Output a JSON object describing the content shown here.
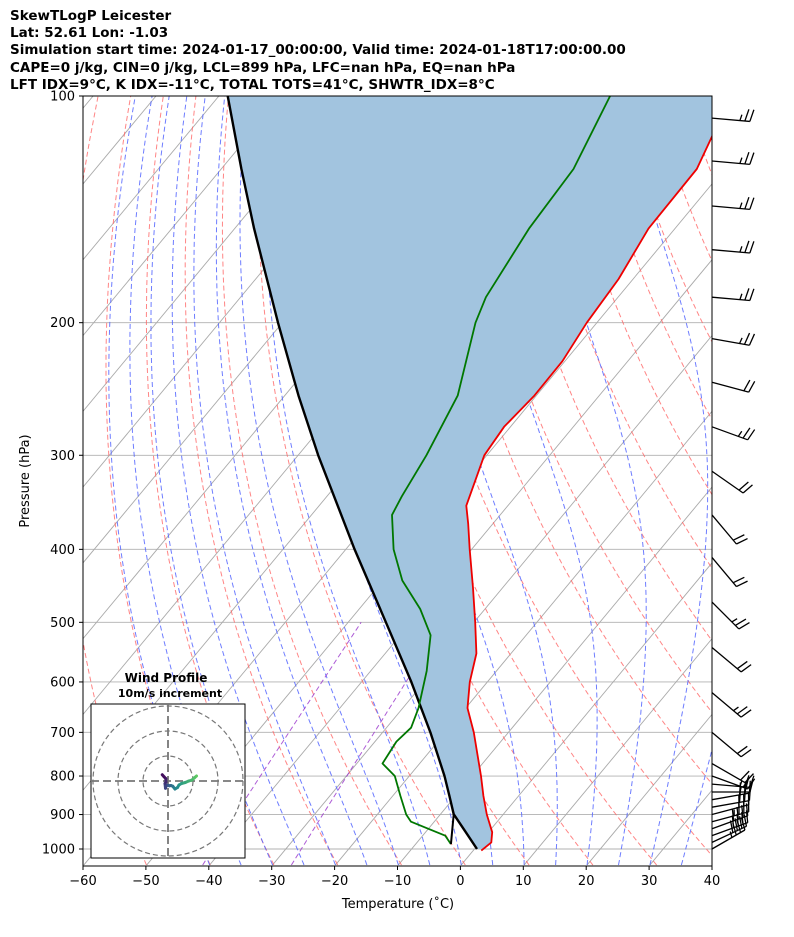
{
  "header": {
    "line1": "SkewTLogP Leicester",
    "line2": "Lat: 52.61   Lon: -1.03",
    "line3": "Simulation start time: 2024-01-17_00:00:00, Valid time: 2024-01-18T17:00:00.00",
    "line4": "CAPE=0 j/kg, CIN=0 j/kg, LCL=899 hPa, LFC=nan hPa, EQ=nan hPa",
    "line5": "LFT IDX=9°C, K IDX=-11°C, TOTAL TOTS=41°C, SHWTR_IDX=8°C"
  },
  "colors": {
    "temperature": "#ee0000",
    "dewpoint": "#007700",
    "parcel": "#000000",
    "cin_fill": "#a2c4df",
    "dry_adiabat": "#ff6666",
    "moist_adiabat": "#5566ff",
    "mixing_ratio": "#9933cc",
    "isotherm": "#aaaaaa"
  },
  "chart_data": {
    "type": "skew-t",
    "title": "SkewTLogP Leicester",
    "xlabel": "Temperature (˚C)",
    "ylabel": "Pressure (hPa)",
    "xlim": [
      -60,
      40
    ],
    "ylim": [
      1050,
      100
    ],
    "x_ticks": [
      "−60",
      "−50",
      "−40",
      "−30",
      "−20",
      "−10",
      "0",
      "10",
      "20",
      "30",
      "40"
    ],
    "y_ticks": [
      {
        "p": 1000,
        "label": "1000"
      },
      {
        "p": 900,
        "label": "900"
      },
      {
        "p": 800,
        "label": "800"
      },
      {
        "p": 700,
        "label": "700"
      },
      {
        "p": 600,
        "label": "600"
      },
      {
        "p": 500,
        "label": "500"
      },
      {
        "p": 400,
        "label": "400"
      },
      {
        "p": 300,
        "label": "300"
      },
      {
        "p": 200,
        "label": "200"
      },
      {
        "p": 100,
        "label": "100"
      }
    ],
    "temperature_profile": [
      {
        "p": 1005,
        "t": 1.3
      },
      {
        "p": 980,
        "t": 1.8
      },
      {
        "p": 950,
        "t": 0.6
      },
      {
        "p": 900,
        "t": -2.6
      },
      {
        "p": 850,
        "t": -5.6
      },
      {
        "p": 800,
        "t": -8.6
      },
      {
        "p": 700,
        "t": -15.5
      },
      {
        "p": 650,
        "t": -19.7
      },
      {
        "p": 600,
        "t": -22.8
      },
      {
        "p": 550,
        "t": -25.5
      },
      {
        "p": 500,
        "t": -29.8
      },
      {
        "p": 450,
        "t": -34.7
      },
      {
        "p": 400,
        "t": -40.3
      },
      {
        "p": 370,
        "t": -43.9
      },
      {
        "p": 350,
        "t": -46.6
      },
      {
        "p": 300,
        "t": -50.4
      },
      {
        "p": 275,
        "t": -51.0
      },
      {
        "p": 250,
        "t": -50.3
      },
      {
        "p": 225,
        "t": -50.4
      },
      {
        "p": 200,
        "t": -51.6
      },
      {
        "p": 175,
        "t": -52.3
      },
      {
        "p": 150,
        "t": -54.2
      },
      {
        "p": 125,
        "t": -54.4
      },
      {
        "p": 100,
        "t": -58.6
      }
    ],
    "dewpoint_profile": [
      {
        "p": 985,
        "t": -4.4
      },
      {
        "p": 960,
        "t": -6.4
      },
      {
        "p": 940,
        "t": -10.0
      },
      {
        "p": 920,
        "t": -13.7
      },
      {
        "p": 900,
        "t": -15.4
      },
      {
        "p": 850,
        "t": -18.8
      },
      {
        "p": 800,
        "t": -22.3
      },
      {
        "p": 770,
        "t": -25.9
      },
      {
        "p": 720,
        "t": -26.6
      },
      {
        "p": 690,
        "t": -26.1
      },
      {
        "p": 650,
        "t": -27.5
      },
      {
        "p": 580,
        "t": -31.1
      },
      {
        "p": 520,
        "t": -35.2
      },
      {
        "p": 480,
        "t": -40.3
      },
      {
        "p": 440,
        "t": -46.9
      },
      {
        "p": 400,
        "t": -52.4
      },
      {
        "p": 360,
        "t": -57.2
      },
      {
        "p": 340,
        "t": -58.1
      },
      {
        "p": 300,
        "t": -59.6
      },
      {
        "p": 250,
        "t": -62.5
      },
      {
        "p": 200,
        "t": -69.3
      },
      {
        "p": 185,
        "t": -71.0
      },
      {
        "p": 150,
        "t": -73.2
      },
      {
        "p": 125,
        "t": -74.0
      },
      {
        "p": 100,
        "t": -77.8
      }
    ],
    "parcel_profile": [
      {
        "p": 1000,
        "t": 0.4
      },
      {
        "p": 950,
        "t": -3.6
      },
      {
        "p": 899,
        "t": -7.9
      },
      {
        "p": 850,
        "t": -11.0
      },
      {
        "p": 800,
        "t": -14.4
      },
      {
        "p": 700,
        "t": -22.4
      },
      {
        "p": 600,
        "t": -32.1
      },
      {
        "p": 500,
        "t": -44.0
      },
      {
        "p": 400,
        "t": -58.6
      },
      {
        "p": 300,
        "t": -76.8
      },
      {
        "p": 250,
        "t": -87.8
      },
      {
        "p": 200,
        "t": -100.7
      },
      {
        "p": 150,
        "t": -116.9
      },
      {
        "p": 125,
        "t": -126.8
      },
      {
        "p": 100,
        "t": -138.6
      }
    ],
    "wind_barbs": [
      {
        "p": 1000,
        "speed_kt": 35,
        "dir": 240
      },
      {
        "p": 980,
        "speed_kt": 40,
        "dir": 245
      },
      {
        "p": 960,
        "speed_kt": 40,
        "dir": 250
      },
      {
        "p": 940,
        "speed_kt": 40,
        "dir": 250
      },
      {
        "p": 920,
        "speed_kt": 35,
        "dir": 255
      },
      {
        "p": 900,
        "speed_kt": 30,
        "dir": 255
      },
      {
        "p": 880,
        "speed_kt": 30,
        "dir": 260
      },
      {
        "p": 860,
        "speed_kt": 30,
        "dir": 260
      },
      {
        "p": 840,
        "speed_kt": 25,
        "dir": 270
      },
      {
        "p": 820,
        "speed_kt": 25,
        "dir": 275
      },
      {
        "p": 800,
        "speed_kt": 20,
        "dir": 290
      },
      {
        "p": 770,
        "speed_kt": 20,
        "dir": 300
      },
      {
        "p": 700,
        "speed_kt": 20,
        "dir": 310
      },
      {
        "p": 620,
        "speed_kt": 25,
        "dir": 310
      },
      {
        "p": 540,
        "speed_kt": 20,
        "dir": 310
      },
      {
        "p": 470,
        "speed_kt": 25,
        "dir": 315
      },
      {
        "p": 410,
        "speed_kt": 20,
        "dir": 320
      },
      {
        "p": 360,
        "speed_kt": 20,
        "dir": 320
      },
      {
        "p": 315,
        "speed_kt": 20,
        "dir": 305
      },
      {
        "p": 275,
        "speed_kt": 25,
        "dir": 290
      },
      {
        "p": 240,
        "speed_kt": 20,
        "dir": 285
      },
      {
        "p": 210,
        "speed_kt": 25,
        "dir": 280
      },
      {
        "p": 185,
        "speed_kt": 25,
        "dir": 275
      },
      {
        "p": 160,
        "speed_kt": 25,
        "dir": 275
      },
      {
        "p": 140,
        "speed_kt": 25,
        "dir": 275
      },
      {
        "p": 122,
        "speed_kt": 25,
        "dir": 275
      },
      {
        "p": 107,
        "speed_kt": 25,
        "dir": 275
      }
    ],
    "hodograph": {
      "title": "Wind Profile",
      "subtitle": "10m/s increment",
      "ring_increment_ms": 10,
      "points": [
        {
          "u": 11.4,
          "v": 2.0
        },
        {
          "u": 10.6,
          "v": 1.3
        },
        {
          "u": 9.6,
          "v": 0.4
        },
        {
          "u": 8.3,
          "v": 0.0
        },
        {
          "u": 6.9,
          "v": -0.6
        },
        {
          "u": 5.4,
          "v": -1.0
        },
        {
          "u": 4.4,
          "v": -1.6
        },
        {
          "u": 3.8,
          "v": -2.6
        },
        {
          "u": 2.8,
          "v": -3.2
        },
        {
          "u": 1.9,
          "v": -2.1
        },
        {
          "u": 1.2,
          "v": -1.8
        },
        {
          "u": 0.6,
          "v": -1.9
        },
        {
          "u": -0.2,
          "v": -1.7
        },
        {
          "u": -0.7,
          "v": -1.9
        },
        {
          "u": -1.0,
          "v": -2.9
        },
        {
          "u": -1.2,
          "v": -1.0
        },
        {
          "u": -0.8,
          "v": -0.5
        },
        {
          "u": -0.9,
          "v": 1.0
        },
        {
          "u": -1.5,
          "v": 1.6
        },
        {
          "u": -2.3,
          "v": 2.5
        }
      ]
    }
  }
}
